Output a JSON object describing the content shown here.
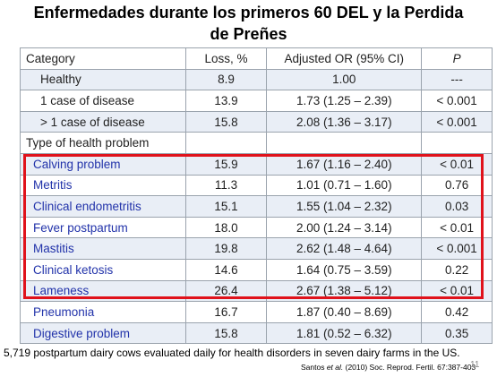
{
  "title": {
    "line1": "Enfermedades  durante los primeros 60 DEL y la Perdida",
    "line2": "de  Preñes"
  },
  "table": {
    "headers": [
      "Category",
      "Loss, %",
      "Adjusted OR (95% CI)",
      "P"
    ],
    "rows": [
      {
        "category": "Healthy",
        "loss": "8.9",
        "or": "1.00",
        "p": "---"
      },
      {
        "category": "1 case of disease",
        "loss": "13.9",
        "or": "1.73 (1.25 – 2.39)",
        "p": "< 0.001"
      },
      {
        "category": "> 1 case of disease",
        "loss": "15.8",
        "or": "2.08 (1.36 – 3.17)",
        "p": "< 0.001"
      },
      {
        "category": "Type of health problem",
        "loss": "",
        "or": "",
        "p": ""
      },
      {
        "category": "Calving problem",
        "loss": "15.9",
        "or": "1.67 (1.16 – 2.40)",
        "p": "< 0.01"
      },
      {
        "category": "Metritis",
        "loss": "11.3",
        "or": "1.01 (0.71 – 1.60)",
        "p": "0.76"
      },
      {
        "category": "Clinical endometritis",
        "loss": "15.1",
        "or": "1.55 (1.04 – 2.32)",
        "p": "0.03"
      },
      {
        "category": "Fever postpartum",
        "loss": "18.0",
        "or": "2.00 (1.24 – 3.14)",
        "p": "< 0.01"
      },
      {
        "category": "Mastitis",
        "loss": "19.8",
        "or": "2.62 (1.48 – 4.64)",
        "p": "< 0.001"
      },
      {
        "category": "Clinical ketosis",
        "loss": "14.6",
        "or": "1.64 (0.75 – 3.59)",
        "p": "0.22"
      },
      {
        "category": "Lameness",
        "loss": "26.4",
        "or": "2.67 (1.38 – 5.12)",
        "p": "< 0.01"
      },
      {
        "category": "Pneumonia",
        "loss": "16.7",
        "or": "1.87 (0.40 – 8.69)",
        "p": "0.42"
      },
      {
        "category": "Digestive problem",
        "loss": "15.8",
        "or": "1.81 (0.52 – 6.32)",
        "p": "0.35"
      }
    ]
  },
  "footnote": "5,719 postpartum dairy cows evaluated daily for health disorders in seven dairy farms in the US.",
  "citation": {
    "authors": "Santos ",
    "etal": "et al.",
    "rest": " (2010) Soc. Reprod. Fertil. 67:387-403"
  },
  "page_number": "11",
  "colors": {
    "highlight_border": "#e0121b",
    "disease_text": "#2233aa",
    "row_shade": "#e9eef6"
  }
}
